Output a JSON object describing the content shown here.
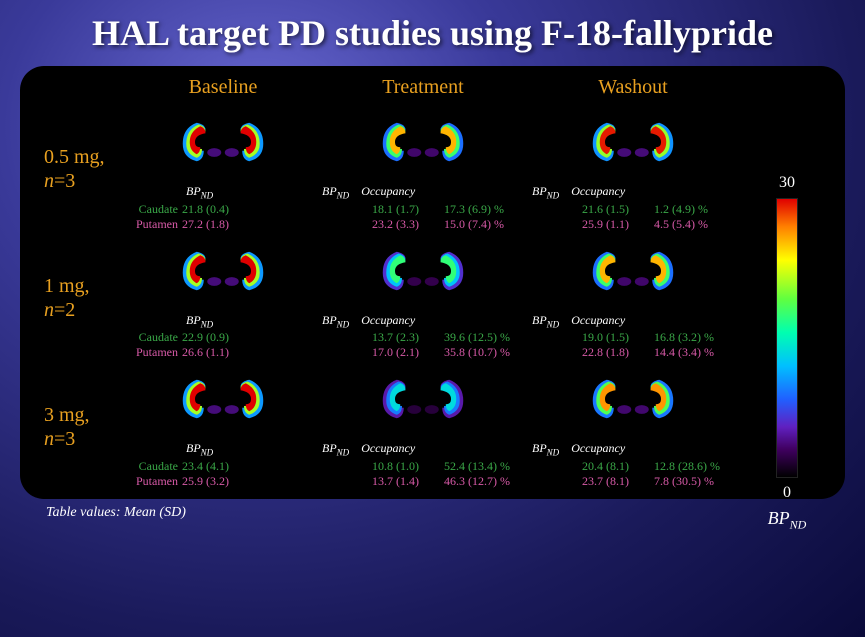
{
  "title": "HAL target PD studies using F-18-fallypride",
  "columns": [
    "Baseline",
    "Treatment",
    "Washout"
  ],
  "row_labels": [
    {
      "dose": "0.5 mg,",
      "n": 3
    },
    {
      "dose": "1 mg,",
      "n": 2
    },
    {
      "dose": "3 mg,",
      "n": 3
    }
  ],
  "region_labels": {
    "caudate": "Caudate",
    "putamen": "Putamen"
  },
  "header_bp": "BP",
  "header_bp_sub": "ND",
  "header_occ": "Occupancy",
  "cells": [
    [
      {
        "intensity": 1.0,
        "bp_c": "21.8 (0.4)",
        "bp_p": "27.2 (1.8)",
        "has_occ": false
      },
      {
        "intensity": 0.85,
        "bp_c": "18.1 (1.7)",
        "bp_p": "23.2 (3.3)",
        "has_occ": true,
        "oc_c": "17.3 (6.9) %",
        "oc_p": "15.0 (7.4) %"
      },
      {
        "intensity": 0.98,
        "bp_c": "21.6 (1.5)",
        "bp_p": "25.9 (1.1)",
        "has_occ": true,
        "oc_c": "1.2 (4.9) %",
        "oc_p": "4.5 (5.4) %"
      }
    ],
    [
      {
        "intensity": 1.0,
        "bp_c": "22.9 (0.9)",
        "bp_p": "26.6 (1.1)",
        "has_occ": false
      },
      {
        "intensity": 0.58,
        "bp_c": "13.7 (2.3)",
        "bp_p": "17.0 (2.1)",
        "has_occ": true,
        "oc_c": "39.6 (12.5) %",
        "oc_p": "35.8 (10.7) %"
      },
      {
        "intensity": 0.85,
        "bp_c": "19.0 (1.5)",
        "bp_p": "22.8 (1.8)",
        "has_occ": true,
        "oc_c": "16.8 (3.2) %",
        "oc_p": "14.4 (3.4) %"
      }
    ],
    [
      {
        "intensity": 1.0,
        "bp_c": "23.4 (4.1)",
        "bp_p": "25.9 (3.2)",
        "has_occ": false
      },
      {
        "intensity": 0.45,
        "bp_c": "10.8 (1.0)",
        "bp_p": "13.7 (1.4)",
        "has_occ": true,
        "oc_c": "52.4 (13.4) %",
        "oc_p": "46.3 (12.7) %"
      },
      {
        "intensity": 0.88,
        "bp_c": "20.4 (8.1)",
        "bp_p": "23.7 (8.1)",
        "has_occ": true,
        "oc_c": "12.8 (28.6) %",
        "oc_p": "7.8 (30.5) %"
      }
    ]
  ],
  "colorbar": {
    "max": "30",
    "min": "0",
    "label": "BP",
    "label_sub": "ND"
  },
  "footnote_prefix": "Table values: Mean (",
  "footnote_sd": "SD",
  "footnote_suffix": ")",
  "colors": {
    "caudate": "#3aa848",
    "putamen": "#d85aa8",
    "accent": "#e8a020"
  }
}
